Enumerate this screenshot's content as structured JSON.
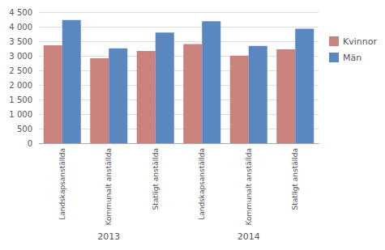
{
  "chart_data": {
    "type": "bar",
    "categories": [
      "Landskapsanställda",
      "Kommunalt anställda",
      "Statligt anställda",
      "Landskapsanställda",
      "Kommunalt anställda",
      "Statligt anställda"
    ],
    "annotations": [
      "2013",
      "2014"
    ],
    "series": [
      {
        "name": "Kvinnor",
        "color": "#C9827C",
        "values": [
          3360,
          2920,
          3170,
          3400,
          3010,
          3220
        ]
      },
      {
        "name": "Män",
        "color": "#5B87C0",
        "values": [
          4230,
          3260,
          3800,
          4190,
          3340,
          3930
        ]
      }
    ],
    "ylim": [
      0,
      4500
    ],
    "yticks": [
      0,
      500,
      {
        "value": 1000,
        "label": "1 000"
      },
      {
        "value": 1500,
        "label": "1 500"
      },
      {
        "value": 2000,
        "label": "2 000"
      },
      {
        "value": 2500,
        "label": "2 500"
      },
      {
        "value": 3000,
        "label": "3 000"
      },
      {
        "value": 3500,
        "label": "3 500"
      },
      {
        "value": 4000,
        "label": "4 000"
      },
      {
        "value": 4500,
        "label": "4 500"
      }
    ],
    "grid": true,
    "legend": "right"
  }
}
